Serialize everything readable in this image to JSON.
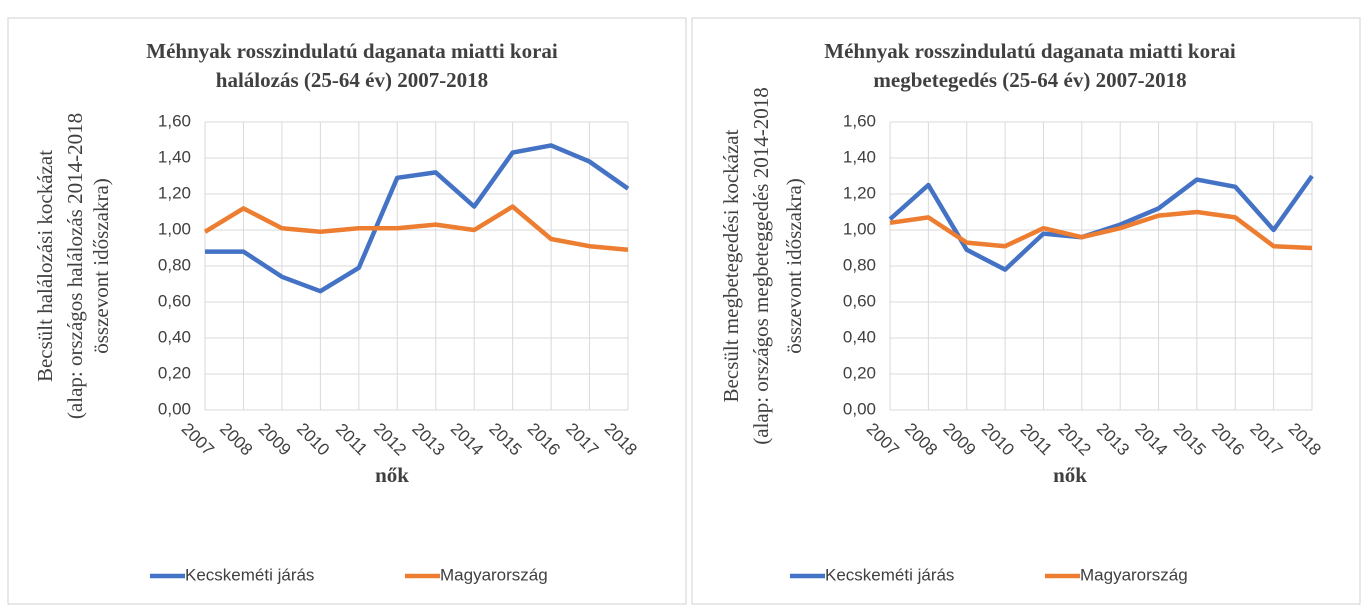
{
  "chart_data": [
    {
      "type": "line",
      "title": [
        "Méhnyak rosszindulatú daganata miatti korai",
        "halálozás (25-64 év) 2007-2018"
      ],
      "ylabel": [
        "Becsült halálozási kockázat",
        "(alap: országos halálozás 2014-2018",
        "összevont időszakra)"
      ],
      "xlabel": "nők",
      "categories": [
        "2007",
        "2008",
        "2009",
        "2010",
        "2011",
        "2012",
        "2013",
        "2014",
        "2015",
        "2016",
        "2017",
        "2018"
      ],
      "series": [
        {
          "name": "Kecskeméti járás",
          "color": "#4472c4",
          "values": [
            0.88,
            0.88,
            0.74,
            0.66,
            0.79,
            1.29,
            1.32,
            1.13,
            1.43,
            1.47,
            1.38,
            1.23
          ]
        },
        {
          "name": "Magyarország",
          "color": "#ed7d31",
          "values": [
            0.99,
            1.12,
            1.01,
            0.99,
            1.01,
            1.01,
            1.03,
            1.0,
            1.13,
            0.95,
            0.91,
            0.89
          ]
        }
      ],
      "ylim": [
        0,
        1.6
      ],
      "yticks": [
        {
          "value": 0,
          "label": "0,00"
        },
        {
          "value": 0.2,
          "label": "0,20"
        },
        {
          "value": 0.4,
          "label": "0,40"
        },
        {
          "value": 0.6,
          "label": "0,60"
        },
        {
          "value": 0.8,
          "label": "0,80"
        },
        {
          "value": 1,
          "label": "1,00"
        },
        {
          "value": 1.2,
          "label": "1,20"
        },
        {
          "value": 1.4,
          "label": "1,40"
        },
        {
          "value": 1.6,
          "label": "1,60"
        }
      ],
      "grid": true,
      "legend": "bottom"
    },
    {
      "type": "line",
      "title": [
        "Méhnyak rosszindulatú daganata miatti korai",
        "megbetegedés (25-64 év) 2007-2018"
      ],
      "ylabel": [
        "Becsült megbetegedési kockázat",
        "(alap: országos megbeteggedés 2014-2018",
        "összevont időszakra)"
      ],
      "xlabel": "nők",
      "categories": [
        "2007",
        "2008",
        "2009",
        "2010",
        "2011",
        "2012",
        "2013",
        "2014",
        "2015",
        "2016",
        "2017",
        "2018"
      ],
      "series": [
        {
          "name": "Kecskeméti járás",
          "color": "#4472c4",
          "values": [
            1.06,
            1.25,
            0.89,
            0.78,
            0.98,
            0.96,
            1.03,
            1.12,
            1.28,
            1.24,
            1.0,
            1.3
          ]
        },
        {
          "name": "Magyarország",
          "color": "#ed7d31",
          "values": [
            1.04,
            1.07,
            0.93,
            0.91,
            1.01,
            0.96,
            1.01,
            1.08,
            1.1,
            1.07,
            0.91,
            0.9
          ]
        }
      ],
      "ylim": [
        0,
        1.6
      ],
      "yticks": [
        {
          "value": 0,
          "label": "0,00"
        },
        {
          "value": 0.2,
          "label": "0,20"
        },
        {
          "value": 0.4,
          "label": "0,40"
        },
        {
          "value": 0.6,
          "label": "0,60"
        },
        {
          "value": 0.8,
          "label": "0,80"
        },
        {
          "value": 1,
          "label": "1,00"
        },
        {
          "value": 1.2,
          "label": "1,20"
        },
        {
          "value": 1.4,
          "label": "1,40"
        },
        {
          "value": 1.6,
          "label": "1,60"
        }
      ],
      "grid": true,
      "legend": "bottom"
    }
  ]
}
